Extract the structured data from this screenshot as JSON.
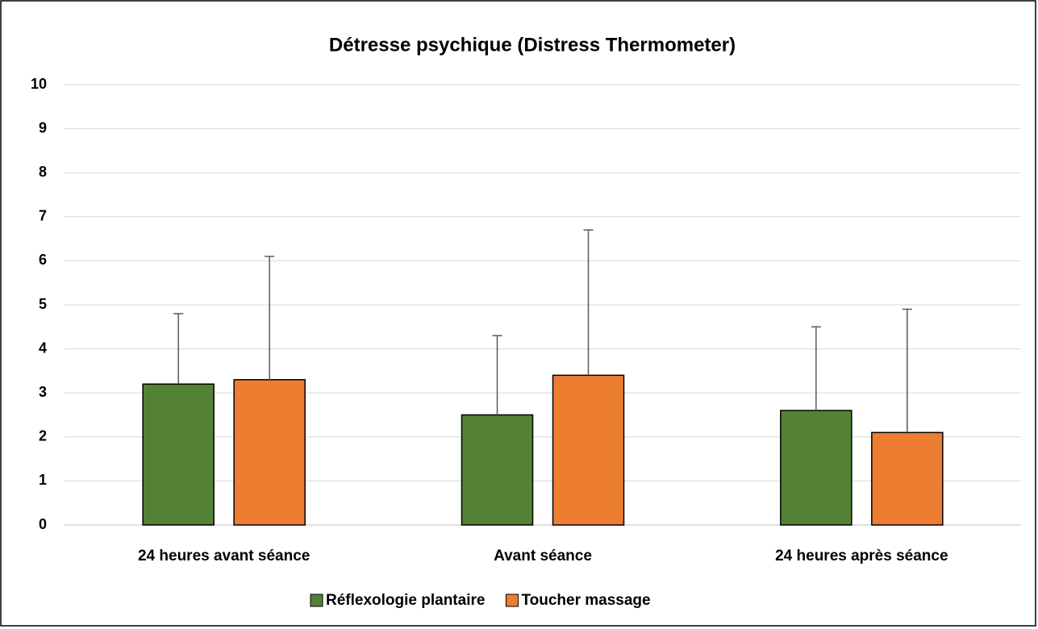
{
  "chart_data": {
    "type": "bar",
    "title": "Détresse psychique (Distress Thermometer)",
    "categories": [
      "24 heures avant séance",
      "Avant séance",
      "24 heures après séance"
    ],
    "series": [
      {
        "name": "Réflexologie plantaire",
        "color": "#548235",
        "values": [
          3.2,
          2.5,
          2.6
        ],
        "errors": [
          1.6,
          1.8,
          1.9
        ]
      },
      {
        "name": "Toucher massage",
        "color": "#ED7D31",
        "values": [
          3.3,
          3.4,
          2.1
        ],
        "errors": [
          2.8,
          3.3,
          2.8
        ]
      }
    ],
    "ylim": [
      0,
      10
    ],
    "yticks": [
      0,
      1,
      2,
      3,
      4,
      5,
      6,
      7,
      8,
      9,
      10
    ],
    "grid": true,
    "legend": "bottom"
  }
}
